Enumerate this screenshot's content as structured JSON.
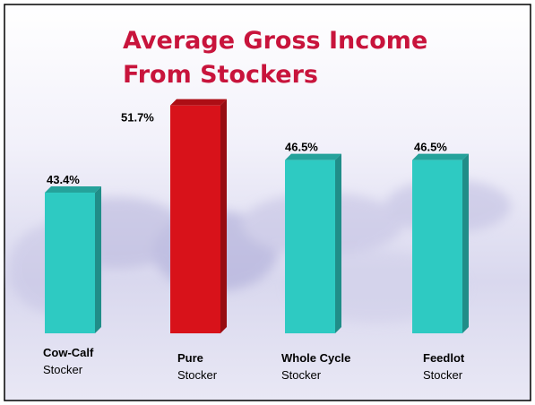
{
  "chart_data": {
    "type": "bar",
    "title": [
      "Average Gross Income",
      "From Stockers"
    ],
    "categories": [
      "Cow-Calf",
      "Pure",
      "Whole Cycle",
      "Feedlot"
    ],
    "category_sublabels": [
      "Stocker",
      "Stocker",
      "Stocker",
      "Stocker"
    ],
    "values": [
      43.4,
      51.7,
      46.5,
      46.5
    ],
    "value_labels": [
      "43.4%",
      "51.7%",
      "46.5%",
      "46.5%"
    ],
    "colors": [
      "#2ecac2",
      "#d8121a",
      "#2ecac2",
      "#2ecac2"
    ],
    "ylim": [
      30,
      55
    ]
  }
}
